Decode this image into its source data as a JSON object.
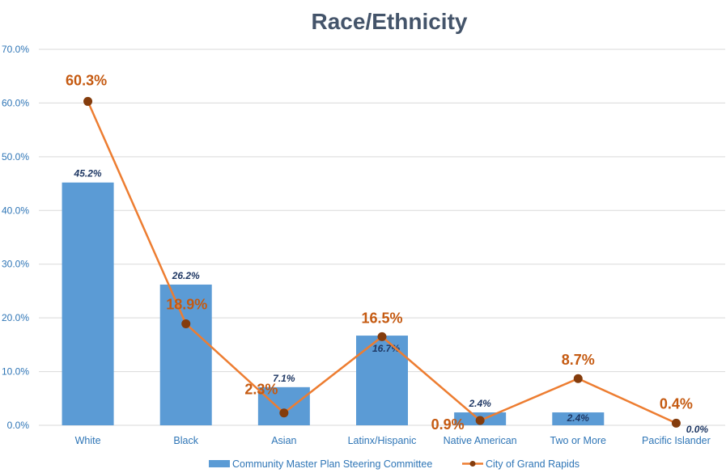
{
  "chart_data": {
    "type": "bar",
    "title": "Race/Ethnicity",
    "categories": [
      "White",
      "Black",
      "Asian",
      "Latinx/Hispanic",
      "Native American",
      "Two or More",
      "Pacific Islander"
    ],
    "series": [
      {
        "name": "Community Master Plan Steering Committee",
        "type": "bar",
        "values": [
          45.2,
          26.2,
          7.1,
          16.7,
          2.4,
          2.4,
          0.0
        ],
        "labels": [
          "45.2%",
          "26.2%",
          "7.1%",
          "16.7%",
          "2.4%",
          "2.4%",
          "0.0%"
        ],
        "color": "#5B9BD5"
      },
      {
        "name": "City of Grand Rapids",
        "type": "line",
        "values": [
          60.3,
          18.9,
          2.3,
          16.5,
          0.9,
          8.7,
          0.4
        ],
        "labels": [
          "60.3%",
          "18.9%",
          "2.3%",
          "16.5%",
          "0.9%",
          "8.7%",
          "0.4%"
        ],
        "color": "#ED7D31",
        "marker_color": "#843C0C",
        "label_color": "#C55A11"
      }
    ],
    "ylim": [
      0,
      70
    ],
    "yticks": [
      "0.0%",
      "10.0%",
      "20.0%",
      "30.0%",
      "40.0%",
      "50.0%",
      "60.0%",
      "70.0%"
    ],
    "grid": true,
    "legend_position": "bottom"
  }
}
